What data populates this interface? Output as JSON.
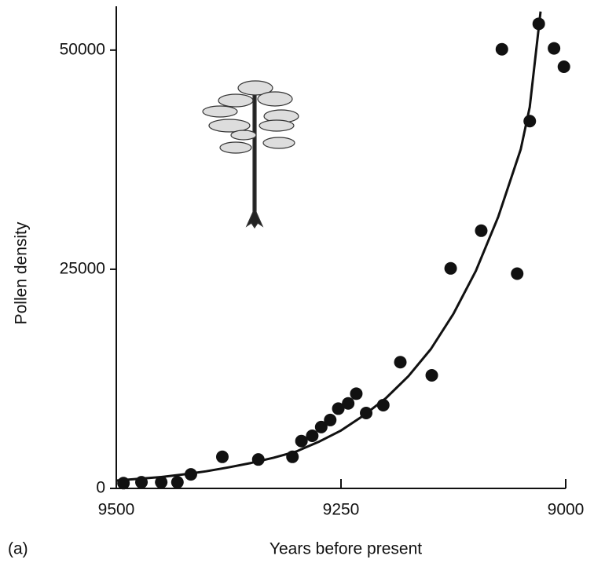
{
  "chart_data": {
    "type": "scatter",
    "x_label": "Years before present",
    "y_label": "Pollen density",
    "annotation": "(a)",
    "xlim": [
      9500,
      9000
    ],
    "xticks": [
      9500,
      9250,
      9000
    ],
    "ylim": [
      0,
      55000
    ],
    "yticks": [
      0,
      25000,
      50000
    ],
    "color": "#111111",
    "points": {
      "x": [
        9492,
        9472,
        9450,
        9432,
        9417,
        9382,
        9342,
        9304,
        9294,
        9282,
        9272,
        9262,
        9253,
        9242,
        9233,
        9222,
        9203,
        9184,
        9149,
        9128,
        9094,
        9071,
        9054,
        9040,
        9030,
        9013,
        9002
      ],
      "y": [
        600,
        700,
        700,
        700,
        1600,
        3600,
        3300,
        3600,
        5400,
        6000,
        7000,
        7800,
        9100,
        9700,
        10800,
        8600,
        9500,
        14400,
        12900,
        25100,
        29400,
        50100,
        24500,
        41900,
        53000,
        50200,
        48100
      ]
    },
    "fit": {
      "x": [
        9500,
        9475,
        9450,
        9425,
        9400,
        9375,
        9350,
        9325,
        9300,
        9275,
        9250,
        9225,
        9200,
        9175,
        9150,
        9125,
        9100,
        9075,
        9050,
        9040,
        9028
      ],
      "y": [
        900,
        1100,
        1300,
        1600,
        1950,
        2400,
        2900,
        3500,
        4200,
        5300,
        6600,
        8300,
        10300,
        12800,
        15900,
        19900,
        24800,
        31000,
        38700,
        43500,
        54400
      ]
    }
  }
}
